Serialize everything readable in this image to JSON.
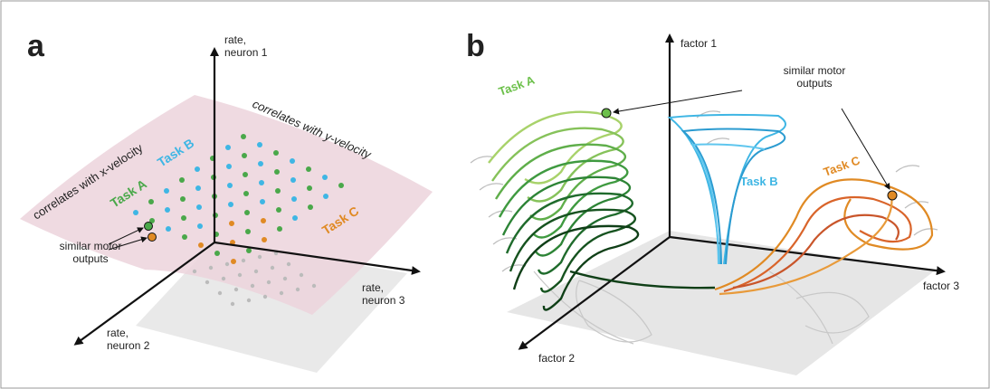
{
  "panel_a": {
    "label": "a",
    "axis_up": [
      "rate,",
      "neuron 1"
    ],
    "axis_right": [
      "rate,",
      "neuron 3"
    ],
    "axis_left": [
      "rate,",
      "neuron 2"
    ],
    "plane_left": "correlates with x-velocity",
    "plane_right": "correlates with y-velocity",
    "task_a": "Task A",
    "task_b": "Task B",
    "task_c": "Task C",
    "note": [
      "similar motor",
      "outputs"
    ]
  },
  "panel_b": {
    "label": "b",
    "axis_up": "factor 1",
    "axis_right": "factor 3",
    "axis_left": "factor 2",
    "task_a": "Task A",
    "task_b": "Task B",
    "task_c": "Task C",
    "note": [
      "similar motor",
      "outputs"
    ]
  }
}
